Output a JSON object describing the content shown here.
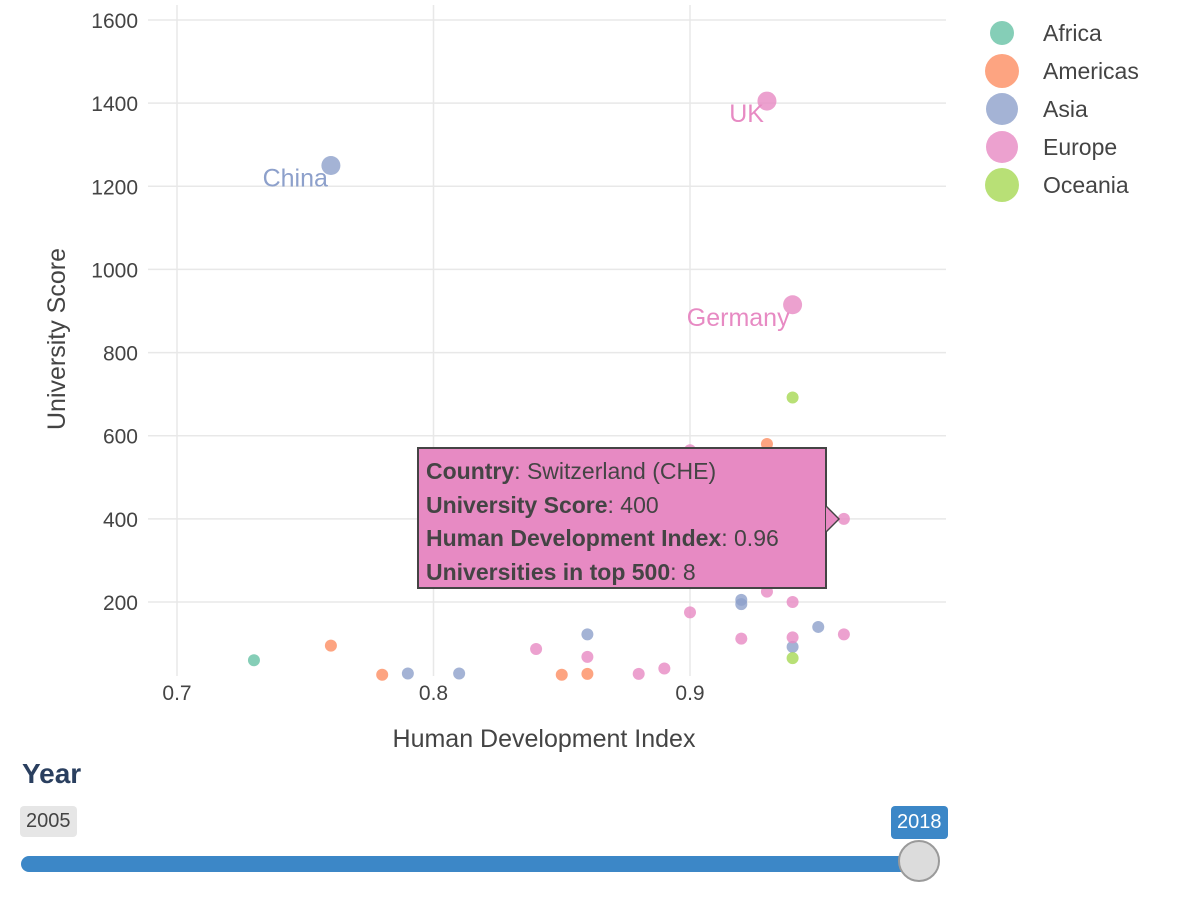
{
  "chart_data": {
    "type": "scatter",
    "xlabel": "Human Development Index",
    "ylabel": "University Score",
    "xlim": [
      0.7,
      0.99
    ],
    "ylim": [
      30,
      1640
    ],
    "xticks": [
      "0.7",
      "0.8",
      "0.9"
    ],
    "xtick_values": [
      0.7,
      0.8,
      0.9
    ],
    "yticks": [
      "200",
      "400",
      "600",
      "800",
      "1000",
      "1200",
      "1400",
      "1600"
    ],
    "ytick_values": [
      200,
      400,
      600,
      800,
      1000,
      1200,
      1400,
      1600
    ],
    "grid": true,
    "legend_position": "top-right",
    "series": [
      {
        "name": "Africa",
        "color": "#66c2a5",
        "points": [
          {
            "x": 0.73,
            "y": 60
          }
        ]
      },
      {
        "name": "Americas",
        "color": "#fc8d62",
        "points": [
          {
            "x": 0.76,
            "y": 95
          },
          {
            "x": 0.78,
            "y": 25
          },
          {
            "x": 0.85,
            "y": 25
          },
          {
            "x": 0.86,
            "y": 27
          },
          {
            "x": 0.93,
            "y": 580
          }
        ]
      },
      {
        "name": "Asia",
        "color": "#8da0cb",
        "points": [
          {
            "x": 0.76,
            "y": 1250,
            "label": "China"
          },
          {
            "x": 0.79,
            "y": 28
          },
          {
            "x": 0.81,
            "y": 28
          },
          {
            "x": 0.86,
            "y": 122
          },
          {
            "x": 0.92,
            "y": 205
          },
          {
            "x": 0.92,
            "y": 195
          },
          {
            "x": 0.94,
            "y": 92
          },
          {
            "x": 0.95,
            "y": 140
          }
        ]
      },
      {
        "name": "Europe",
        "color": "#e78ac3",
        "points": [
          {
            "x": 0.93,
            "y": 1405,
            "label": "UK"
          },
          {
            "x": 0.94,
            "y": 915,
            "label": "Germany"
          },
          {
            "x": 0.96,
            "y": 400
          },
          {
            "x": 0.9,
            "y": 565
          },
          {
            "x": 0.84,
            "y": 87
          },
          {
            "x": 0.86,
            "y": 68
          },
          {
            "x": 0.88,
            "y": 27
          },
          {
            "x": 0.89,
            "y": 40
          },
          {
            "x": 0.9,
            "y": 175
          },
          {
            "x": 0.92,
            "y": 112
          },
          {
            "x": 0.93,
            "y": 225
          },
          {
            "x": 0.94,
            "y": 200
          },
          {
            "x": 0.94,
            "y": 115
          },
          {
            "x": 0.96,
            "y": 122
          }
        ]
      },
      {
        "name": "Oceania",
        "color": "#a6d854",
        "points": [
          {
            "x": 0.94,
            "y": 692
          },
          {
            "x": 0.94,
            "y": 65
          }
        ]
      }
    ]
  },
  "tooltip": {
    "country_label": "Country",
    "country_value": ": Switzerland (CHE)",
    "score_label": "University Score",
    "score_value": ": 400",
    "hdi_label": "Human Development Index",
    "hdi_value": ": 0.96",
    "unis_label": "Universities in top 500",
    "unis_value": ": 8",
    "color": "#e78ac3"
  },
  "slider": {
    "title": "Year",
    "min_label": "2005",
    "max_label": "2018",
    "track_color": "#3c87c7"
  }
}
